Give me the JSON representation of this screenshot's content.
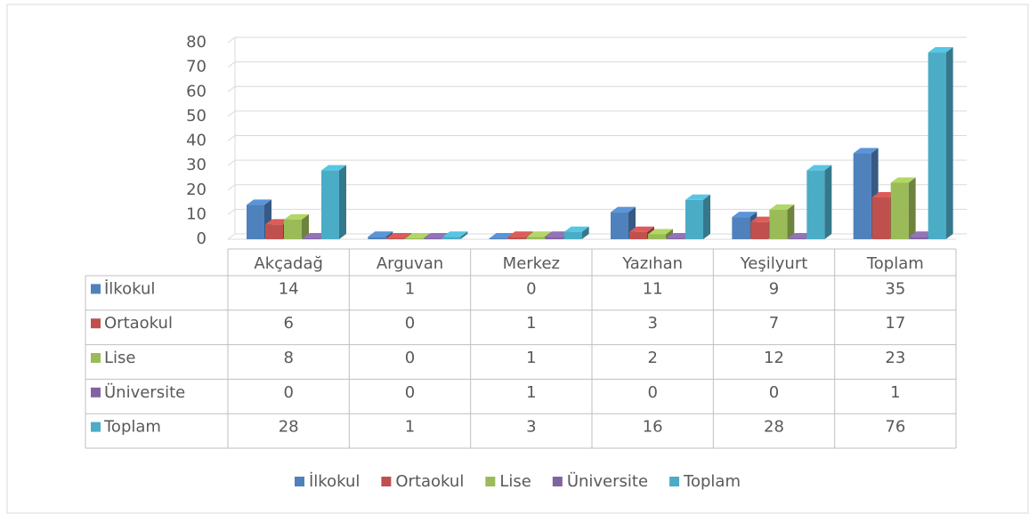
{
  "chart_data": {
    "type": "bar",
    "categories": [
      "Akçadağ",
      "Arguvan",
      "Merkez",
      "Yazıhan",
      "Yeşilyurt",
      "Toplam"
    ],
    "series": [
      {
        "name": "İlkokul",
        "color": "#4f81bd",
        "values": [
          14,
          1,
          0,
          11,
          9,
          35
        ]
      },
      {
        "name": "Ortaokul",
        "color": "#c0504d",
        "values": [
          6,
          0,
          1,
          3,
          7,
          17
        ]
      },
      {
        "name": "Lise",
        "color": "#9bbb59",
        "values": [
          8,
          0,
          1,
          2,
          12,
          23
        ]
      },
      {
        "name": "Üniversite",
        "color": "#8064a2",
        "values": [
          0,
          0,
          1,
          0,
          0,
          1
        ]
      },
      {
        "name": "Toplam",
        "color": "#4bacc6",
        "values": [
          28,
          1,
          3,
          16,
          28,
          76
        ]
      }
    ],
    "ylim": [
      0,
      80
    ],
    "yticks": [
      0,
      10,
      20,
      30,
      40,
      50,
      60,
      70,
      80
    ],
    "grid": true,
    "data_table": true,
    "legend": "bottom"
  }
}
